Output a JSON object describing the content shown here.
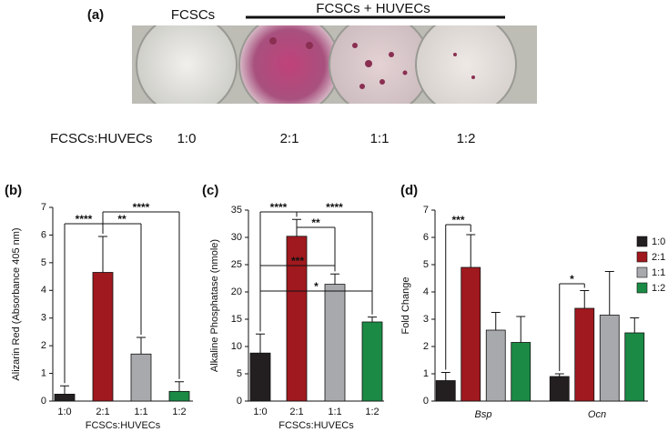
{
  "panel_a": {
    "label": "(a)",
    "group_left": "FCSCs",
    "group_right": "FCSCs + HUVECs",
    "ratio_title": "FCSCs:HUVECs",
    "ratios": [
      "1:0",
      "2:1",
      "1:1",
      "1:2"
    ]
  },
  "chart_data": [
    {
      "type": "bar",
      "panel": "(b)",
      "y_label": "Alizarin Red (Absorbance 405 nm)",
      "x_label": "FCSCs:HUVECs",
      "categories": [
        "1:0",
        "2:1",
        "1:1",
        "1:2"
      ],
      "values": [
        0.25,
        4.65,
        1.7,
        0.35
      ],
      "errors": [
        0.3,
        1.3,
        0.6,
        0.35
      ],
      "colors": [
        "#231f20",
        "#a0191e",
        "#a7a9ac",
        "#1a8a45"
      ],
      "ylim": [
        0,
        7
      ],
      "yticks": [
        0,
        1,
        2,
        3,
        4,
        5,
        6,
        7
      ],
      "annotations": [
        "****",
        "**",
        "****"
      ]
    },
    {
      "type": "bar",
      "panel": "(c)",
      "y_label": "Alkaline Phosphatase (nmole)",
      "x_label": "FCSCs:HUVECs",
      "categories": [
        "1:0",
        "2:1",
        "1:1",
        "1:2"
      ],
      "values": [
        8.8,
        30.2,
        21.4,
        14.5
      ],
      "errors": [
        3.5,
        3.1,
        1.9,
        0.9
      ],
      "colors": [
        "#231f20",
        "#a0191e",
        "#a7a9ac",
        "#1a8a45"
      ],
      "ylim": [
        0,
        35
      ],
      "yticks": [
        0,
        5,
        10,
        15,
        20,
        25,
        30,
        35
      ],
      "annotations": [
        "****",
        "**",
        "****",
        "***",
        "*"
      ]
    },
    {
      "type": "grouped_bar",
      "panel": "(d)",
      "y_label": "Fold Change",
      "categories": [
        "Bsp",
        "Ocn"
      ],
      "series": [
        {
          "name": "1:0",
          "color": "#231f20",
          "values": [
            0.75,
            0.9
          ],
          "errors": [
            0.3,
            0.1
          ]
        },
        {
          "name": "2:1",
          "color": "#a0191e",
          "values": [
            4.9,
            3.4
          ],
          "errors": [
            1.2,
            0.65
          ]
        },
        {
          "name": "1:1",
          "color": "#a7a9ac",
          "values": [
            2.6,
            3.15
          ],
          "errors": [
            0.65,
            1.6
          ]
        },
        {
          "name": "1:2",
          "color": "#1a8a45",
          "values": [
            2.15,
            2.5
          ],
          "errors": [
            0.95,
            0.55
          ]
        }
      ],
      "ylim": [
        0,
        7
      ],
      "yticks": [
        0,
        1,
        2,
        3,
        4,
        5,
        6,
        7
      ],
      "legend": "upper right",
      "annotations": [
        "***",
        "*"
      ]
    }
  ]
}
